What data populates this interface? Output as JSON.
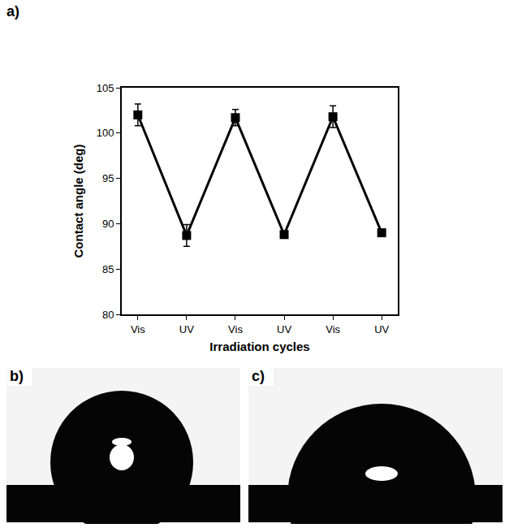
{
  "chart_data": {
    "type": "line",
    "panel": "a)",
    "x_label": "Irradiation cycles",
    "y_label": "Contact angle (deg)",
    "categories": [
      "Vis",
      "UV",
      "Vis",
      "UV",
      "Vis",
      "UV"
    ],
    "values": [
      102.0,
      88.7,
      101.7,
      88.8,
      101.8,
      89.0
    ],
    "errors": [
      1.2,
      1.2,
      0.9,
      0.3,
      1.2,
      0.3
    ],
    "color": "#000000",
    "marker": "square",
    "line_style": "solid",
    "ylim": [
      80,
      105
    ],
    "yticks": [
      80,
      85,
      90,
      95,
      100,
      105
    ],
    "grid": false
  },
  "panels": [
    {
      "label": "b)"
    },
    {
      "label": "c)"
    }
  ]
}
